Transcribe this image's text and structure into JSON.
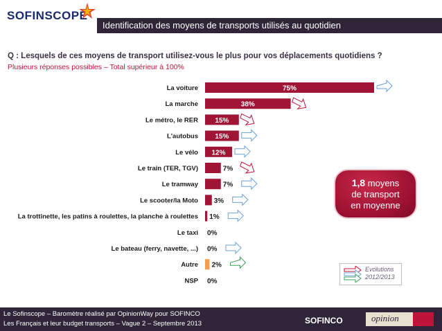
{
  "header": {
    "logo_text": "SOFINSCOPE",
    "title": "Identification des moyens de transports utilisés au quotidien"
  },
  "question": "Q : Lesquels de ces moyens de transport utilisez-vous le plus pour vos déplacements quotidiens ?",
  "subquestion": "Plusieurs réponses possibles – Total supérieur à 100%",
  "chart_data": {
    "type": "bar",
    "orientation": "horizontal",
    "categories": [
      "La voiture",
      "La marche",
      "Le métro, le RER",
      "L'autobus",
      "Le vélo",
      "Le train (TER, TGV)",
      "Le tramway",
      "Le scooter/la Moto",
      "La trottinette, les patins à roulettes, la planche à roulettes",
      "Le taxi",
      "Le bateau (ferry, navette, ...)",
      "Autre",
      "NSP"
    ],
    "values": [
      75,
      38,
      15,
      15,
      12,
      7,
      7,
      3,
      1,
      0,
      0,
      2,
      0
    ],
    "value_labels": [
      "75%",
      "38%",
      "15%",
      "15%",
      "12%",
      "7%",
      "7%",
      "3%",
      "1%",
      "0%",
      "0%",
      "2%",
      "0%"
    ],
    "evolution": [
      "up",
      "down",
      "down",
      "stable",
      "stable",
      "down",
      "stable",
      "stable",
      "stable",
      "",
      "stable",
      "up",
      ""
    ],
    "bar_color": "#a01536",
    "other_color": "#f0a050",
    "arrow_up_color": "#6aa0d8",
    "arrow_down_color": "#c0133b",
    "arrow_stable_color": "#6aa0d8",
    "xlim": [
      0,
      100
    ]
  },
  "bubble": {
    "line1_bold": "1,8",
    "line1_rest": " moyens",
    "line2": "de transport",
    "line3": "en moyenne"
  },
  "legend": {
    "line1": "Evolutions",
    "line2": "2012/2013"
  },
  "footer": {
    "line1": "Le Sofinscope – Baromètre réalisé par OpinionWay pour SOFINCO",
    "line2": "Les Français et leur budget transports – Vague 2 – Septembre 2013",
    "brand": "SOFINCO",
    "partner": "opinion"
  }
}
